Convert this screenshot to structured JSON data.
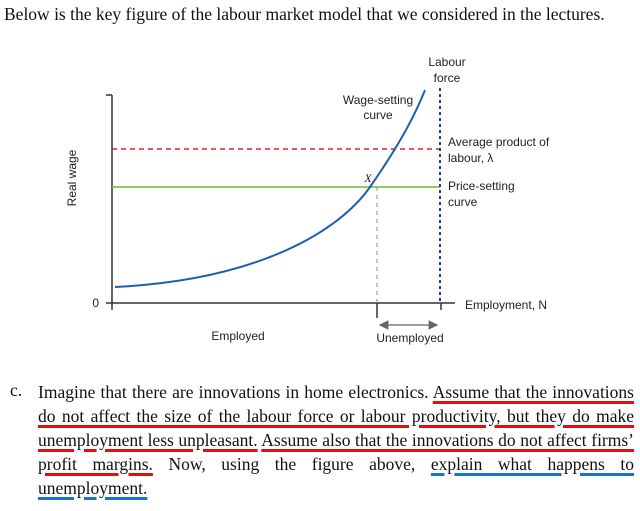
{
  "intro": "Below is the key figure of the labour market model that we considered in the lectures.",
  "figure": {
    "y_axis_label": "Real wage",
    "origin_label": "0",
    "x_axis_label": "Employment, N",
    "labour_force_label": [
      "Labour",
      "force"
    ],
    "wage_setting_label": [
      "Wage-setting",
      "curve"
    ],
    "average_product_label": [
      "Average product of",
      "labour, λ"
    ],
    "price_setting_label": [
      "Price-setting",
      "curve"
    ],
    "point_label": "X",
    "employed_label": "Employed",
    "unemployed_label": "Unemployed"
  },
  "question": {
    "label": "c.",
    "segments": [
      "Imagine that there are innovations in home electronics.",
      "Assume that the innovations do not affect the size of the labour force or labour productivity, but they do make unemployment less unpleasant.",
      "Assume also that the innovations do not affect firms’ profit margins.",
      "Now, using the figure above,",
      "explain what happens to unemployment."
    ]
  }
}
